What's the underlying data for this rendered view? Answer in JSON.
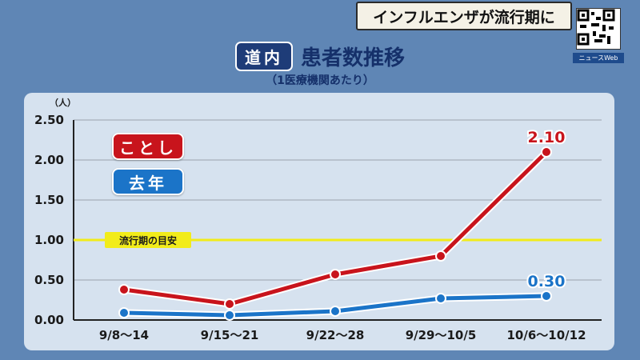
{
  "banner": {
    "text": "インフルエンザが流行期に"
  },
  "qr": {
    "caption": "ニュースWeb"
  },
  "header": {
    "region": "道内",
    "title": "患者数推移",
    "subtitle": "（1医療機関あたり）"
  },
  "legend": {
    "this_year": "ことし",
    "last_year": "去年"
  },
  "colors": {
    "this_year": "#c8141c",
    "last_year": "#1b74c8",
    "threshold": "#f2ec1a",
    "background": "#5f86b5",
    "panel": "#d6e2ef"
  },
  "chart_data": {
    "type": "line",
    "y_unit": "（人）",
    "categories": [
      "9/8～14",
      "9/15～21",
      "9/22～28",
      "9/29～10/5",
      "10/6～10/12"
    ],
    "series": [
      {
        "name": "ことし",
        "values": [
          0.38,
          0.2,
          0.57,
          0.8,
          2.1
        ]
      },
      {
        "name": "去年",
        "values": [
          0.09,
          0.06,
          0.11,
          0.27,
          0.3
        ]
      }
    ],
    "y_ticks": [
      "0.00",
      "0.50",
      "1.00",
      "1.50",
      "2.00",
      "2.50"
    ],
    "ylim": [
      0,
      2.5
    ],
    "threshold": {
      "value": 1.0,
      "label": "流行期の目安"
    },
    "data_labels": [
      {
        "series": 0,
        "index": 4,
        "text": "2.10"
      },
      {
        "series": 1,
        "index": 4,
        "text": "0.30"
      }
    ],
    "grid": true
  }
}
